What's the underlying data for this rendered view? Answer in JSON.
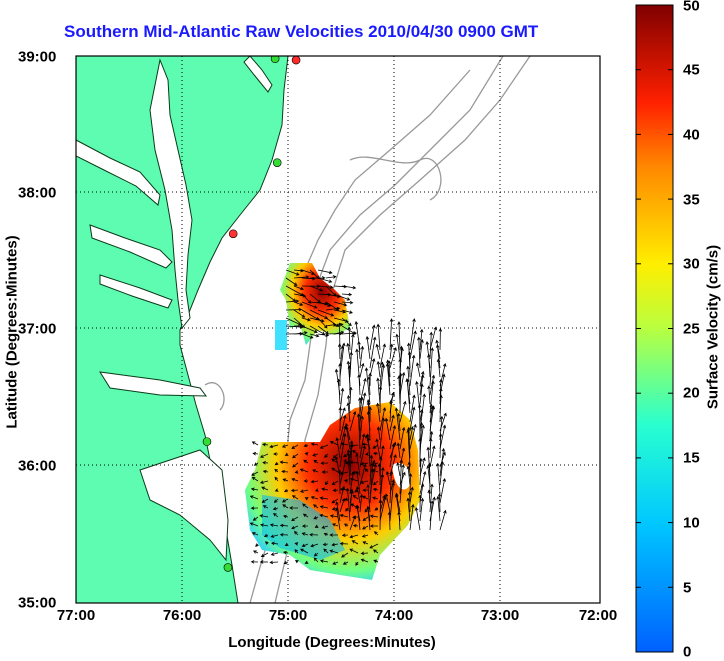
{
  "title": "Southern Mid-Atlantic Raw Velocities 2010/04/30 0900 GMT",
  "x_axis": {
    "label": "Longitude (Degrees:Minutes)",
    "ticks": [
      "77:00",
      "76:00",
      "75:00",
      "74:00",
      "73:00",
      "72:00"
    ]
  },
  "y_axis": {
    "label": "Latitude (Degrees:Minutes)",
    "ticks": [
      "39:00",
      "38:00",
      "37:00",
      "36:00",
      "35:00"
    ]
  },
  "colorbar": {
    "label": "Surface Velocity (cm/s)",
    "ticks": [
      "50",
      "45",
      "40",
      "35",
      "30",
      "25",
      "20",
      "15",
      "10",
      "5",
      "0"
    ],
    "range": [
      0,
      50
    ],
    "colormap": "jet"
  },
  "map": {
    "lon_range": [
      -77,
      -72
    ],
    "lat_range": [
      35,
      39
    ],
    "land_color": "#5dfcb0",
    "bathymetry_color": "#999999",
    "grid": "dotted",
    "stations": [
      {
        "lon": -74.9,
        "lat": 38.97,
        "color": "#ff2a2a"
      },
      {
        "lon": -75.1,
        "lat": 38.98,
        "color": "#33dd33"
      },
      {
        "lon": -75.08,
        "lat": 38.22,
        "color": "#33dd33"
      },
      {
        "lon": -75.5,
        "lat": 37.7,
        "color": "#ff3333"
      },
      {
        "lon": -75.75,
        "lat": 36.18,
        "color": "#33dd33"
      },
      {
        "lon": -75.55,
        "lat": 35.26,
        "color": "#33dd33"
      }
    ]
  }
}
